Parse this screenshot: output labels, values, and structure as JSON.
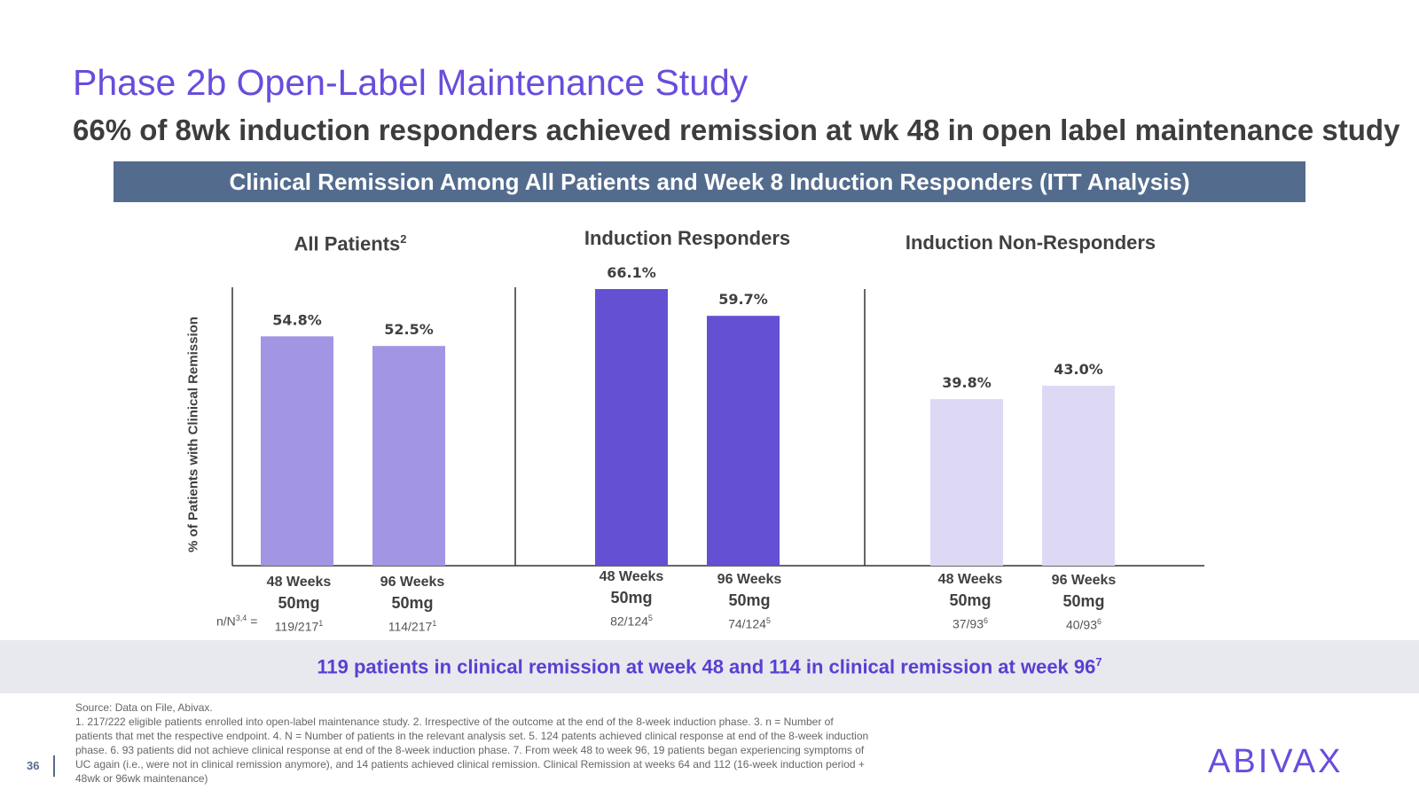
{
  "header": {
    "title": "Phase 2b Open-Label Maintenance Study",
    "subtitle": "66% of 8wk induction responders achieved remission at wk 48 in open label maintenance study",
    "banner": "Clinical Remission Among All Patients and Week 8 Induction Responders (ITT Analysis)"
  },
  "chart_data": {
    "type": "bar",
    "ylabel": "% of Patients with Clinical Remission",
    "ylim": [
      0,
      66.1
    ],
    "grid": false,
    "panels": [
      {
        "title": "All Patients",
        "title_sup": "2",
        "color": "#a295e3",
        "categories": [
          "48 Weeks",
          "96 Weeks"
        ],
        "dose": [
          "50mg",
          "50mg"
        ],
        "values": [
          54.8,
          52.5
        ],
        "labels": [
          "54.8%",
          "52.5%"
        ],
        "n": [
          "119/217",
          "114/217"
        ],
        "n_sup": [
          "1",
          "1"
        ]
      },
      {
        "title": "Induction Responders",
        "title_sup": "",
        "color": "#6350d3",
        "categories": [
          "48 Weeks",
          "96 Weeks"
        ],
        "dose": [
          "50mg",
          "50mg"
        ],
        "values": [
          66.1,
          59.7
        ],
        "labels": [
          "66.1%",
          "59.7%"
        ],
        "n": [
          "82/124",
          "74/124"
        ],
        "n_sup": [
          "5",
          "5"
        ]
      },
      {
        "title": "Induction Non-Responders",
        "title_sup": "",
        "color": "#ddd9f5",
        "categories": [
          "48 Weeks",
          "96 Weeks"
        ],
        "dose": [
          "50mg",
          "50mg"
        ],
        "values": [
          39.8,
          43.0
        ],
        "labels": [
          "39.8%",
          "43.0%"
        ],
        "n": [
          "37/93",
          "40/93"
        ],
        "n_sup": [
          "6",
          "6"
        ]
      }
    ],
    "n_prefix": "n/N",
    "n_prefix_sup": "3,4",
    "n_prefix_eq": " = "
  },
  "summary": {
    "text": "119 patients in clinical remission at week 48 and 114 in clinical remission at week 96",
    "sup": "7"
  },
  "footnote": {
    "source": "Source: Data on File, Abivax.",
    "notes": "1. 217/222 eligible patients enrolled into open-label maintenance study. 2. Irrespective of the outcome at the end of the 8-week induction phase. 3. n = Number of patients that met the respective endpoint. 4. N = Number of patients in the relevant analysis set. 5. 124 patents achieved clinical response at end of the 8-week induction phase. 6. 93 patients did not achieve clinical response at end of the 8-week induction phase. 7. From week 48 to week 96, 19 patients began experiencing symptoms of UC again (i.e., were not in clinical remission anymore), and 14 patients achieved clinical remission. Clinical Remission at weeks 64 and 112 (16-week induction period + 48wk or 96wk maintenance)"
  },
  "page": {
    "number": "36"
  },
  "logo": {
    "text": "ABIVAX"
  }
}
